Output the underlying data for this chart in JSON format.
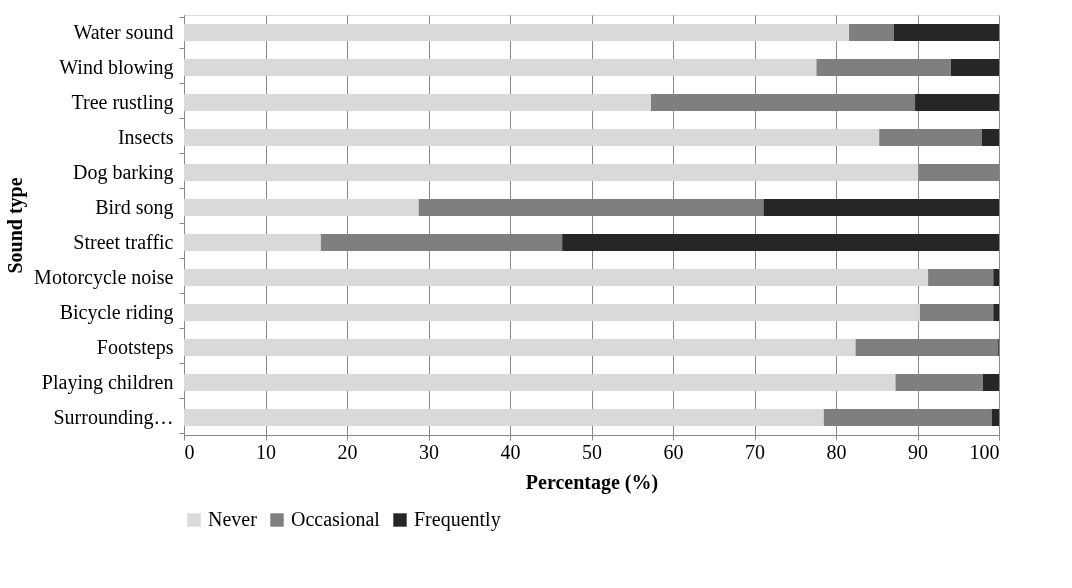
{
  "chart_data": {
    "type": "bar",
    "orientation": "horizontal",
    "stacked": true,
    "xlabel": "Percentage (%)",
    "ylabel": "Sound type",
    "categories": [
      "Water sound",
      "Wind blowing",
      "Tree rustling",
      "Insects",
      "Dog barking",
      "Bird song",
      "Street traffic",
      "Motorcycle noise",
      "Bicycle riding",
      "Footsteps",
      "Playing children",
      "Surrounding…"
    ],
    "series": [
      {
        "name": "Never",
        "color": "#d9d9d9",
        "values": [
          81.6,
          77.6,
          57.3,
          85.3,
          90.1,
          28.8,
          16.8,
          91.3,
          90.3,
          82.4,
          87.3,
          78.5
        ]
      },
      {
        "name": "Occasional",
        "color": "#7f7f7f",
        "values": [
          5.5,
          16.5,
          32.4,
          12.6,
          9.9,
          42.3,
          29.6,
          8.0,
          9.0,
          17.5,
          10.7,
          20.6
        ]
      },
      {
        "name": "Frequently",
        "color": "#262626",
        "values": [
          12.9,
          5.9,
          10.3,
          2.1,
          0,
          28.9,
          53.6,
          0.7,
          0.7,
          0.1,
          2.0,
          0.9
        ]
      }
    ],
    "xlim": [
      0,
      100
    ],
    "xticks": [
      0,
      10,
      20,
      30,
      40,
      50,
      60,
      70,
      80,
      90,
      100
    ],
    "grid": "x",
    "legend": "bottom"
  }
}
